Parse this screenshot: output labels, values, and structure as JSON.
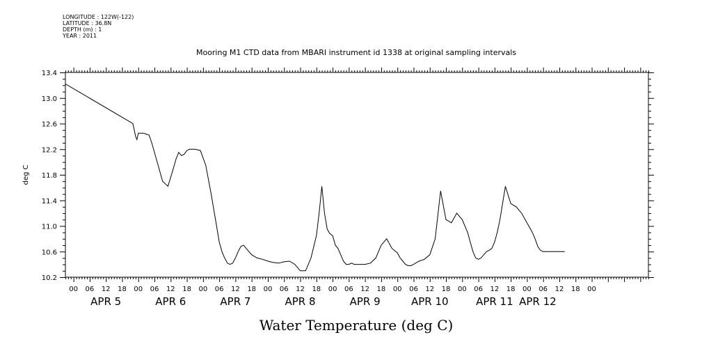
{
  "meta": {
    "longitude": "LONGITUDE : 122W(-122)",
    "latitude": "LATITUDE : 36.8N",
    "depth": "DEPTH (m) : 1",
    "year": "YEAR : 2011"
  },
  "chart_data": {
    "type": "line",
    "title": "Mooring M1 CTD data from MBARI instrument id 1338 at original sampling intervals",
    "ylabel": "deg C",
    "xlabel": "Water Temperature (deg C)",
    "ylim": [
      10.2,
      13.4
    ],
    "yticks": [
      "10.2",
      "10.6",
      "11.0",
      "11.4",
      "11.8",
      "12.2",
      "12.6",
      "13.0",
      "13.4"
    ],
    "ytick_values": [
      10.2,
      10.6,
      11.0,
      11.4,
      11.8,
      12.2,
      12.6,
      13.0,
      13.4
    ],
    "xlim_hours": [
      -3,
      213
    ],
    "hour_tick_labels": [
      "00",
      "06",
      "12",
      "18",
      "00",
      "06",
      "12",
      "18",
      "00",
      "06",
      "12",
      "18",
      "00",
      "06",
      "12",
      "18",
      "00",
      "06",
      "12",
      "18",
      "00",
      "06",
      "12",
      "18",
      "00",
      "06",
      "12",
      "18",
      "00",
      "06",
      "12",
      "18",
      "00"
    ],
    "day_labels": [
      {
        "label": "APR  5",
        "hour": 12
      },
      {
        "label": "APR  6",
        "hour": 36
      },
      {
        "label": "APR  7",
        "hour": 60
      },
      {
        "label": "APR  8",
        "hour": 84
      },
      {
        "label": "APR  9",
        "hour": 108
      },
      {
        "label": "APR 10",
        "hour": 132
      },
      {
        "label": "APR 11",
        "hour": 156
      },
      {
        "label": "APR 12",
        "hour": 172
      }
    ],
    "series": [
      {
        "x": [
          -3,
          22,
          23,
          23.5,
          24,
          26,
          28,
          29,
          30,
          31,
          33,
          35,
          37,
          38,
          39,
          40,
          41,
          42,
          43,
          45,
          47,
          49,
          51,
          53,
          54,
          55,
          56,
          57,
          58,
          59,
          60,
          61,
          62,
          63,
          64,
          66,
          68,
          70,
          72,
          74,
          76,
          78,
          80,
          82,
          84,
          86,
          88,
          90,
          91,
          92,
          93,
          94,
          95,
          96,
          97,
          98,
          99,
          100,
          101,
          102,
          103,
          104,
          106,
          108,
          110,
          112,
          114,
          116,
          118,
          120,
          121,
          122,
          123,
          124,
          125,
          126,
          128,
          130,
          132,
          134,
          136,
          138,
          140,
          142,
          144,
          146,
          147,
          148,
          149,
          150,
          151,
          152,
          153,
          154,
          155,
          156,
          157,
          158,
          160,
          162,
          164,
          166,
          168,
          170,
          171,
          172,
          173,
          174,
          175,
          176,
          177,
          178,
          179,
          180,
          181,
          182
        ],
        "y": [
          13.22,
          12.6,
          12.4,
          12.35,
          12.45,
          12.45,
          12.42,
          12.3,
          12.15,
          12.0,
          11.7,
          11.62,
          11.9,
          12.05,
          12.15,
          12.1,
          12.12,
          12.18,
          12.2,
          12.2,
          12.18,
          11.95,
          11.5,
          11.0,
          10.75,
          10.6,
          10.5,
          10.42,
          10.4,
          10.42,
          10.5,
          10.6,
          10.68,
          10.7,
          10.65,
          10.55,
          10.5,
          10.48,
          10.45,
          10.43,
          10.42,
          10.44,
          10.45,
          10.4,
          10.3,
          10.3,
          10.5,
          10.85,
          11.2,
          11.62,
          11.2,
          10.95,
          10.88,
          10.85,
          10.7,
          10.65,
          10.55,
          10.45,
          10.4,
          10.4,
          10.42,
          10.4,
          10.4,
          10.4,
          10.42,
          10.5,
          10.7,
          10.8,
          10.65,
          10.58,
          10.5,
          10.45,
          10.4,
          10.38,
          10.38,
          10.4,
          10.45,
          10.48,
          10.55,
          10.8,
          11.55,
          11.1,
          11.05,
          11.2,
          11.1,
          10.9,
          10.75,
          10.6,
          10.5,
          10.48,
          10.5,
          10.55,
          10.6,
          10.62,
          10.65,
          10.75,
          10.9,
          11.1,
          11.62,
          11.35,
          11.3,
          11.2,
          11.05,
          10.9,
          10.8,
          10.68,
          10.62,
          10.6,
          10.6,
          10.6,
          10.6,
          10.6,
          10.6,
          10.6,
          10.6,
          10.6
        ]
      }
    ],
    "colors": {
      "line": "#000000",
      "axis": "#000000",
      "background": "#ffffff"
    }
  }
}
